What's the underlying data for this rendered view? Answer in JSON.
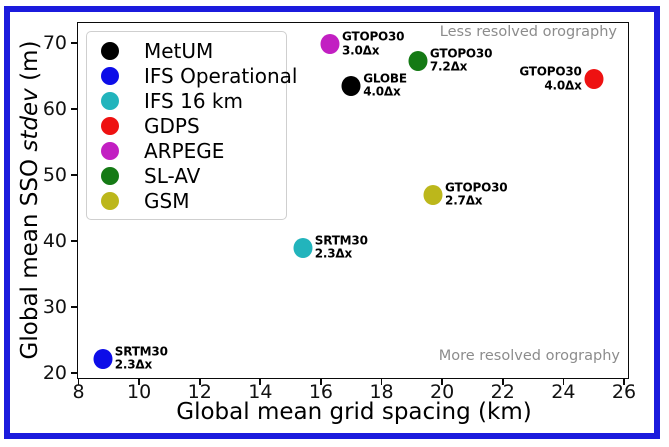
{
  "figure": {
    "frame_color": "#1b1bdd",
    "background": "#ffffff"
  },
  "chart_data": {
    "type": "scatter",
    "title": "",
    "xlabel": "Global mean grid spacing (km)",
    "ylabel": {
      "prefix": "Global mean SSO ",
      "italic": "stdev",
      "suffix": " (m)"
    },
    "xlim": [
      7.95,
      26.1
    ],
    "ylim": [
      19.4,
      73.2
    ],
    "xticks": [
      8,
      10,
      12,
      14,
      16,
      18,
      20,
      22,
      24,
      26
    ],
    "yticks": [
      20,
      30,
      40,
      50,
      60,
      70
    ],
    "grid": false,
    "legend": {
      "position": "upper-left",
      "entries": [
        {
          "label": "MetUM",
          "color": "#000000"
        },
        {
          "label": "IFS Operational",
          "color": "#0d0de8"
        },
        {
          "label": "IFS 16 km",
          "color": "#22b4bc"
        },
        {
          "label": "GDPS",
          "color": "#ee1111"
        },
        {
          "label": "ARPEGE",
          "color": "#c21fc2"
        },
        {
          "label": "SL-AV",
          "color": "#157a15"
        },
        {
          "label": "GSM",
          "color": "#bcb71b"
        }
      ]
    },
    "points": [
      {
        "model": "MetUM",
        "color": "#000000",
        "x": 17.0,
        "y": 63.5,
        "dataset": "GLOBE",
        "resolution": "4.0Δx",
        "label_side": "right"
      },
      {
        "model": "IFS Operational",
        "color": "#0d0de8",
        "x": 8.8,
        "y": 22.2,
        "dataset": "SRTM30",
        "resolution": "2.3Δx",
        "label_side": "right"
      },
      {
        "model": "IFS 16 km",
        "color": "#22b4bc",
        "x": 15.4,
        "y": 39.0,
        "dataset": "SRTM30",
        "resolution": "2.3Δx",
        "label_side": "right"
      },
      {
        "model": "GDPS",
        "color": "#ee1111",
        "x": 25.0,
        "y": 64.5,
        "dataset": "GTOPO30",
        "resolution": "4.0Δx",
        "label_side": "left"
      },
      {
        "model": "ARPEGE",
        "color": "#c21fc2",
        "x": 16.3,
        "y": 69.8,
        "dataset": "GTOPO30",
        "resolution": "3.0Δx",
        "label_side": "right"
      },
      {
        "model": "SL-AV",
        "color": "#157a15",
        "x": 19.2,
        "y": 67.3,
        "dataset": "GTOPO30",
        "resolution": "7.2Δx",
        "label_side": "right"
      },
      {
        "model": "GSM",
        "color": "#bcb71b",
        "x": 19.7,
        "y": 47.0,
        "dataset": "GTOPO30",
        "resolution": "2.7Δx",
        "label_side": "right"
      }
    ],
    "annotations": [
      {
        "text": "Less resolved orography",
        "position": "top-right",
        "color": "#8c8c8c"
      },
      {
        "text": "More resolved orography",
        "position": "bottom-right",
        "color": "#8c8c8c"
      }
    ]
  }
}
